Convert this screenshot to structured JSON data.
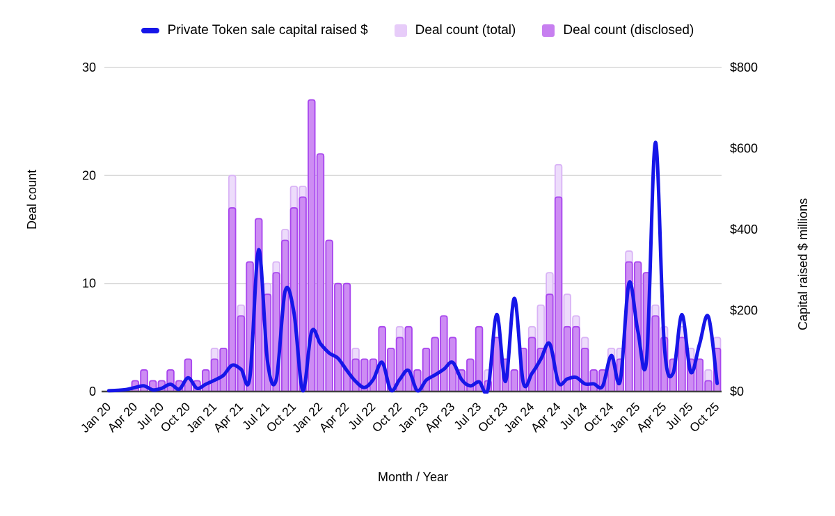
{
  "chart_data": {
    "type": "combo-bar-line",
    "title": "",
    "xlabel": "Month / Year",
    "legend": [
      {
        "label": "Private Token sale capital raised $",
        "kind": "line"
      },
      {
        "label": "Deal count (total)",
        "kind": "box-light"
      },
      {
        "label": "Deal count (disclosed)",
        "kind": "box-solid"
      }
    ],
    "left_axis": {
      "title": "Deal count",
      "ticks": [
        0,
        10,
        20,
        30
      ],
      "max": 30
    },
    "right_axis": {
      "title": "Capital raised $ millions",
      "ticks": [
        0,
        200,
        400,
        600,
        800
      ],
      "tick_labels": [
        "$0",
        "$200",
        "$400",
        "$600",
        "$800"
      ],
      "max": 800
    },
    "x_tick_every": 3,
    "categories": [
      "Jan 20",
      "Feb 20",
      "Mar 20",
      "Apr 20",
      "May 20",
      "Jun 20",
      "Jul 20",
      "Aug 20",
      "Sep 20",
      "Oct 20",
      "Nov 20",
      "Dec 20",
      "Jan 21",
      "Feb 21",
      "Mar 21",
      "Apr 21",
      "May 21",
      "Jun 21",
      "Jul 21",
      "Aug 21",
      "Sep 21",
      "Oct 21",
      "Nov 21",
      "Dec 21",
      "Jan 22",
      "Feb 22",
      "Mar 22",
      "Apr 22",
      "May 22",
      "Jun 22",
      "Jul 22",
      "Aug 22",
      "Sep 22",
      "Oct 22",
      "Nov 22",
      "Dec 22",
      "Jan 23",
      "Feb 23",
      "Mar 23",
      "Apr 23",
      "May 23",
      "Jun 23",
      "Jul 23",
      "Aug 23",
      "Sep 23",
      "Oct 23",
      "Nov 23",
      "Dec 23",
      "Jan 24",
      "Feb 24",
      "Mar 24",
      "Apr 24",
      "May 24",
      "Jun 24",
      "Jul 24",
      "Aug 24",
      "Sep 24",
      "Oct 24",
      "Nov 24",
      "Dec 24",
      "Jan 25",
      "Feb 25",
      "Mar 25",
      "Apr 25",
      "May 25",
      "Jun 25",
      "Jul 25",
      "Aug 25",
      "Sep 25",
      "Oct 25"
    ],
    "series": [
      {
        "name": "Deal count (total)",
        "type": "bar",
        "axis": "left",
        "values": [
          0,
          0,
          0,
          1,
          2,
          1,
          1,
          2,
          1,
          3,
          1,
          2,
          4,
          4,
          20,
          8,
          12,
          16,
          10,
          12,
          15,
          19,
          19,
          27,
          22,
          14,
          10,
          10,
          4,
          3,
          3,
          6,
          4,
          6,
          6,
          2,
          4,
          5,
          7,
          5,
          2,
          3,
          6,
          2,
          5,
          3,
          2,
          4,
          6,
          8,
          11,
          21,
          9,
          7,
          5,
          2,
          2,
          4,
          4,
          13,
          12,
          11,
          8,
          6,
          3,
          6,
          4,
          3,
          2,
          5
        ]
      },
      {
        "name": "Deal count (disclosed)",
        "type": "bar",
        "axis": "left",
        "values": [
          0,
          0,
          0,
          1,
          2,
          1,
          1,
          2,
          1,
          3,
          1,
          2,
          3,
          4,
          17,
          7,
          12,
          16,
          9,
          11,
          14,
          17,
          18,
          27,
          22,
          14,
          10,
          10,
          3,
          3,
          3,
          6,
          4,
          5,
          6,
          2,
          4,
          5,
          7,
          5,
          2,
          3,
          6,
          1,
          5,
          3,
          2,
          4,
          5,
          4,
          9,
          18,
          6,
          6,
          4,
          2,
          2,
          3,
          3,
          12,
          12,
          11,
          7,
          5,
          3,
          5,
          3,
          3,
          1,
          4
        ]
      },
      {
        "name": "Private Token sale capital raised $",
        "type": "line",
        "axis": "right",
        "values": [
          2,
          3,
          5,
          10,
          14,
          4,
          8,
          18,
          6,
          34,
          8,
          18,
          28,
          40,
          65,
          55,
          35,
          350,
          75,
          30,
          248,
          195,
          2,
          148,
          118,
          95,
          82,
          52,
          25,
          10,
          30,
          72,
          3,
          30,
          52,
          2,
          28,
          41,
          55,
          72,
          30,
          14,
          24,
          5,
          190,
          25,
          230,
          23,
          45,
          80,
          118,
          22,
          31,
          35,
          19,
          19,
          13,
          89,
          25,
          268,
          150,
          80,
          615,
          115,
          45,
          190,
          48,
          117,
          185,
          20
        ]
      }
    ],
    "colors": {
      "line": "#1616e8",
      "total_fill": "#eddcfb",
      "total_stroke": "#d9b3f6",
      "disclosed_fill": "#cd8cf3",
      "disclosed_stroke": "#a845ee",
      "legend_total": "#e7ccf9",
      "legend_disclosed": "#c77ff0",
      "grid": "#d9d9d9",
      "axis_line": "#424242",
      "text": "#000000"
    }
  }
}
